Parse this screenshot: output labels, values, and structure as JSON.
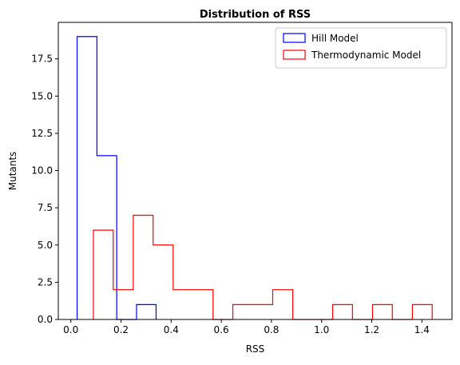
{
  "chart_data": {
    "type": "histogram",
    "title": "Distribution of RSS",
    "xlabel": "RSS",
    "ylabel": "Mutants",
    "xlim": [
      -0.05,
      1.52
    ],
    "ylim": [
      0,
      19.95
    ],
    "x_ticks": [
      0.0,
      0.2,
      0.4,
      0.6,
      0.8,
      1.0,
      1.2,
      1.4
    ],
    "x_tick_labels": [
      "0.0",
      "0.2",
      "0.4",
      "0.6",
      "0.8",
      "1.0",
      "1.2",
      "1.4"
    ],
    "y_ticks": [
      0.0,
      2.5,
      5.0,
      7.5,
      10.0,
      12.5,
      15.0,
      17.5
    ],
    "y_tick_labels": [
      "0.0",
      "2.5",
      "5.0",
      "7.5",
      "10.0",
      "12.5",
      "15.0",
      "17.5"
    ],
    "legend_position": "top-right",
    "grid": false,
    "series": [
      {
        "name": "Hill Model",
        "color": "#0000ff",
        "histtype": "step",
        "edges": [
          0.025,
          0.104,
          0.183,
          0.262,
          0.34
        ],
        "counts": [
          19,
          11,
          0,
          1
        ]
      },
      {
        "name": "Thermodynamic Model",
        "color": "#ff0000",
        "histtype": "step",
        "edges": [
          0.09,
          0.169,
          0.249,
          0.328,
          0.408,
          0.487,
          0.567,
          0.646,
          0.726,
          0.805,
          0.885,
          0.964,
          1.044,
          1.123,
          1.203,
          1.282,
          1.362,
          1.441
        ],
        "counts": [
          6,
          2,
          7,
          5,
          2,
          2,
          0,
          1,
          1,
          2,
          0,
          0,
          1,
          0,
          1,
          0,
          1
        ]
      }
    ]
  }
}
